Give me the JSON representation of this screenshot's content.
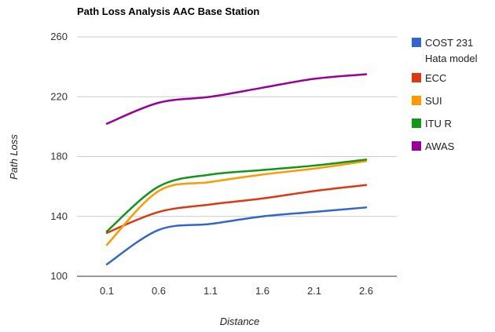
{
  "chart_data": {
    "type": "line",
    "title": "Path Loss Analysis AAC Base Station",
    "xlabel": "Distance",
    "ylabel": "Path Loss",
    "categories": [
      "0.1",
      "0.6",
      "1.1",
      "1.6",
      "2.1",
      "2.6"
    ],
    "ylim": [
      100,
      260
    ],
    "yticks": [
      "100",
      "140",
      "180",
      "220",
      "260"
    ],
    "grid": true,
    "legend_position": "right",
    "series": [
      {
        "name": "COST 231 Hata model",
        "legend_lines": [
          "COST 231",
          "Hata model"
        ],
        "color": "#3366cc",
        "values": [
          108,
          131,
          135,
          140,
          143,
          146
        ]
      },
      {
        "name": "ECC",
        "legend_lines": [
          "ECC"
        ],
        "color": "#dc3912",
        "values": [
          129,
          143,
          148,
          152,
          157,
          161
        ]
      },
      {
        "name": "SUI",
        "legend_lines": [
          "SUI"
        ],
        "color": "#ff9900",
        "values": [
          121,
          157,
          163,
          168,
          172,
          177
        ]
      },
      {
        "name": "ITU R",
        "legend_lines": [
          "ITU R"
        ],
        "color": "#109618",
        "values": [
          130,
          160,
          168,
          171,
          174,
          178
        ]
      },
      {
        "name": "AWAS",
        "legend_lines": [
          "AWAS"
        ],
        "color": "#990099",
        "values": [
          202,
          216,
          220,
          226,
          232,
          235
        ]
      }
    ]
  }
}
